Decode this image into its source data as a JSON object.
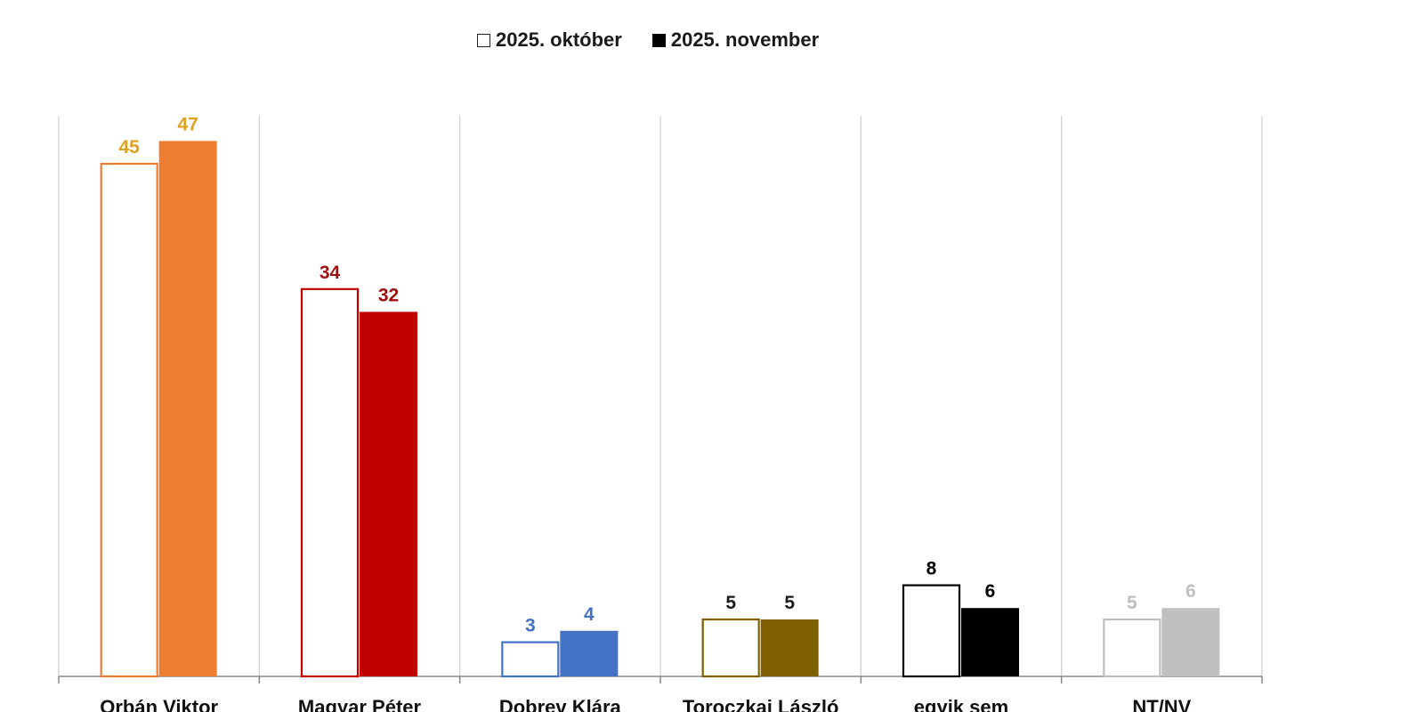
{
  "chart_data": {
    "type": "bar",
    "legend": [
      {
        "name": "2025. október",
        "style": "outline"
      },
      {
        "name": "2025. november",
        "style": "filled"
      }
    ],
    "categories": [
      "Orbán Viktor",
      "Magyar Péter",
      "Dobrev Klára",
      "Toroczkai László",
      "egyik sem",
      "NT/NV"
    ],
    "series": [
      {
        "name": "2025. október",
        "values": [
          45,
          34,
          3,
          5,
          8,
          5
        ]
      },
      {
        "name": "2025. november",
        "values": [
          47,
          32,
          4,
          5,
          6,
          6
        ]
      }
    ],
    "category_colors": [
      "#ED7D31",
      "#C00000",
      "#4472C4",
      "#7F6000",
      "#000000",
      "#BFBFBF"
    ],
    "label_colors": [
      "#E0A020",
      "#A01010",
      "#4472C4",
      "#1a1a1a",
      "#000000",
      "#BFBFBF"
    ],
    "ylim": [
      0,
      50
    ],
    "grid": "vertical category separators",
    "legend_position": "top-center"
  }
}
